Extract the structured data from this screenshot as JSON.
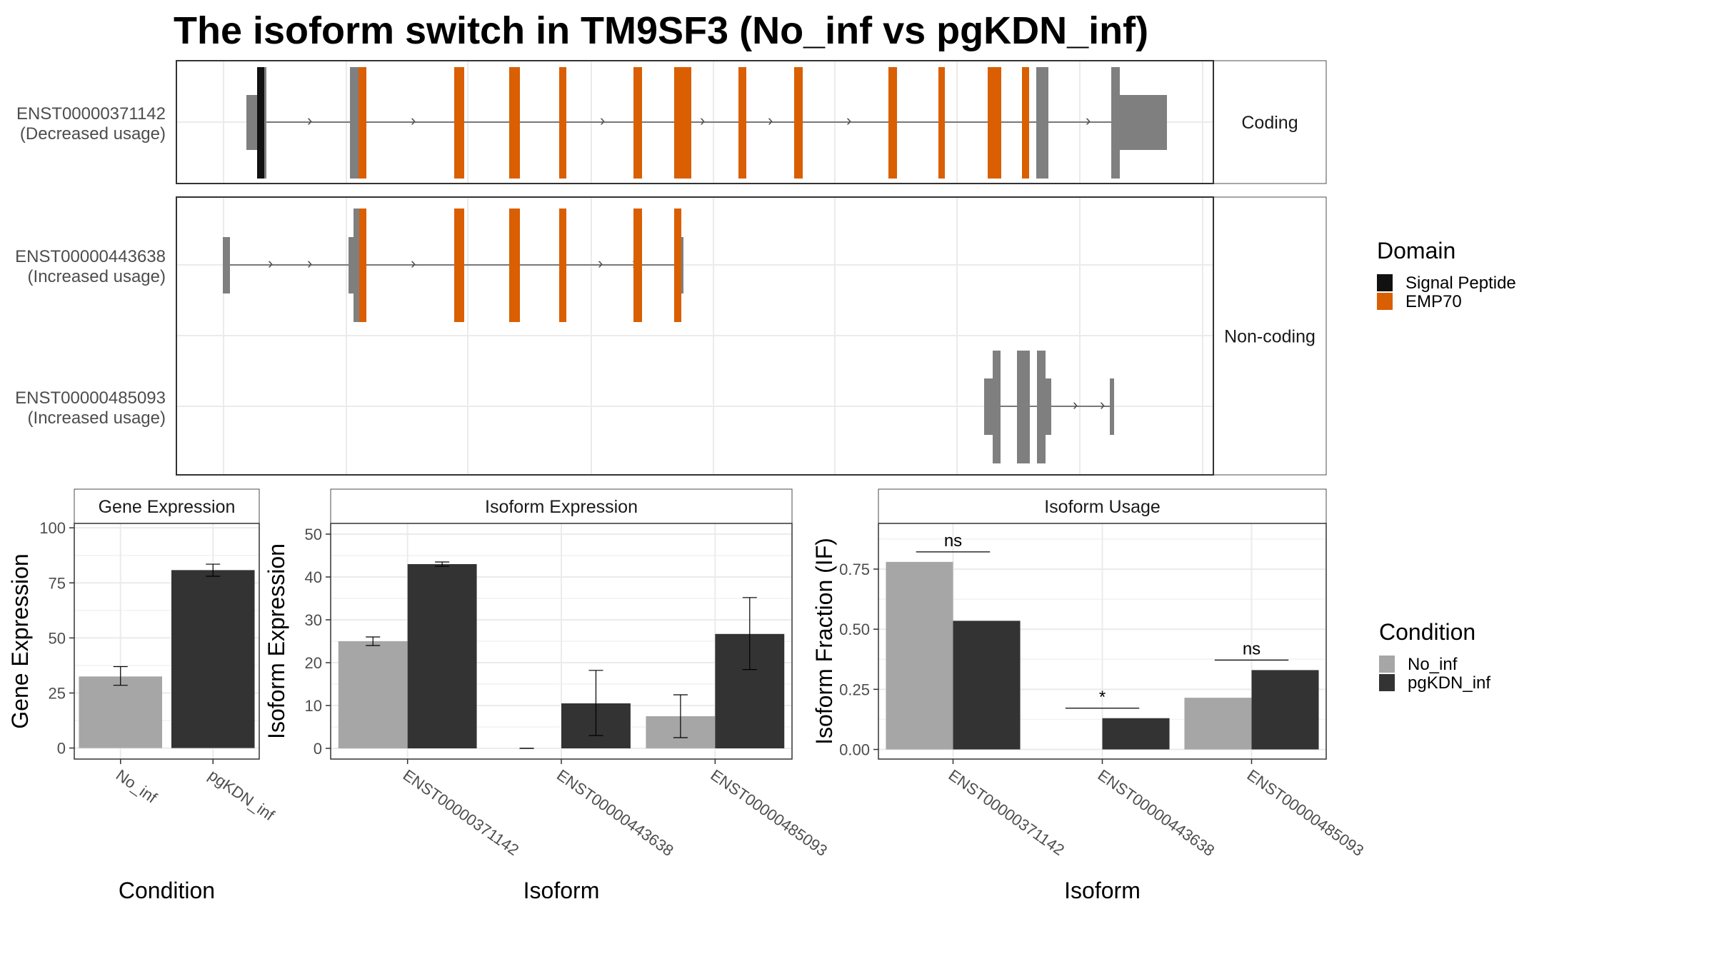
{
  "title": "The isoform switch in TM9SF3 (No_inf vs pgKDN_inf)",
  "colors": {
    "emp70": "#D95F02",
    "signal_peptide": "#111111",
    "exon": "#7F7F7F",
    "no_inf": "#A6A6A6",
    "pgkdn_inf": "#333333"
  },
  "transcripts": {
    "facets": [
      "Coding",
      "Non-coding"
    ],
    "rows": [
      {
        "id": "ENST00000371142",
        "usage": "(Decreased usage)"
      },
      {
        "id": "ENST00000443638",
        "usage": "(Increased usage)"
      },
      {
        "id": "ENST00000485093",
        "usage": "(Increased usage)"
      }
    ]
  },
  "domain_legend": {
    "title": "Domain",
    "items": [
      {
        "label": "Signal Peptide",
        "color": "#111111"
      },
      {
        "label": "EMP70",
        "color": "#D95F02"
      }
    ]
  },
  "condition_legend": {
    "title": "Condition",
    "items": [
      {
        "label": "No_inf",
        "color": "#A6A6A6"
      },
      {
        "label": "pgKDN_inf",
        "color": "#333333"
      }
    ]
  },
  "chart_data": [
    {
      "type": "bar",
      "title": "Gene Expression",
      "xlabel": "Condition",
      "ylabel": "Gene Expression",
      "categories": [
        "No_inf",
        "pgKDN_inf"
      ],
      "values": [
        32.5,
        80.8
      ],
      "errors": [
        [
          28.5,
          37.0
        ],
        [
          78.0,
          83.5
        ]
      ],
      "ylim": [
        -5,
        102
      ],
      "yticks": [
        0,
        25,
        50,
        75,
        100
      ],
      "grid": true
    },
    {
      "type": "bar",
      "title": "Isoform Expression",
      "xlabel": "Isoform",
      "ylabel": "Isoform Expression",
      "categories": [
        "ENST00000371142",
        "ENST00000443638",
        "ENST00000485093"
      ],
      "series": [
        {
          "name": "No_inf",
          "values": [
            25.0,
            0.0,
            7.5
          ],
          "errors": [
            [
              24.0,
              26.0
            ],
            [
              0.0,
              0.0
            ],
            [
              2.5,
              12.5
            ]
          ]
        },
        {
          "name": "pgKDN_inf",
          "values": [
            43.0,
            10.5,
            26.7
          ],
          "errors": [
            [
              42.5,
              43.5
            ],
            [
              3.0,
              18.2
            ],
            [
              18.4,
              35.2
            ]
          ]
        }
      ],
      "ylim": [
        -2.5,
        52.5
      ],
      "yticks": [
        0,
        10,
        20,
        30,
        40,
        50
      ],
      "grid": true
    },
    {
      "type": "bar",
      "title": "Isoform Usage",
      "xlabel": "Isoform",
      "ylabel": "Isoform Fraction (IF)",
      "categories": [
        "ENST00000371142",
        "ENST00000443638",
        "ENST00000485093"
      ],
      "series": [
        {
          "name": "No_inf",
          "values": [
            0.78,
            0.0,
            0.215
          ]
        },
        {
          "name": "pgKDN_inf",
          "values": [
            0.535,
            0.13,
            0.33
          ]
        }
      ],
      "significance": [
        "ns",
        "*",
        "ns"
      ],
      "ylim": [
        -0.04,
        0.94
      ],
      "yticks": [
        "0.00",
        "0.25",
        "0.50",
        "0.75"
      ],
      "grid": true
    }
  ]
}
